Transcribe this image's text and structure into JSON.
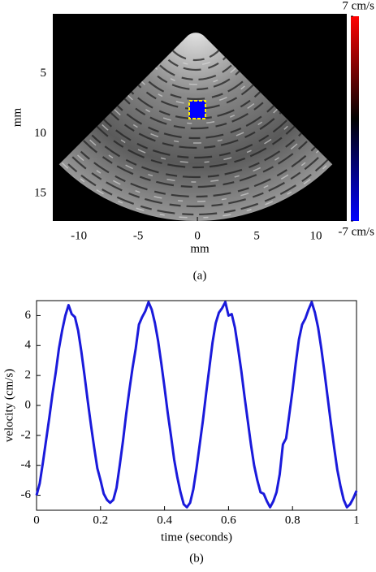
{
  "chart_data": [
    {
      "type": "image",
      "xlabel": "mm",
      "ylabel": "mm",
      "caption": "(a)",
      "xlim": [
        -12.2,
        12.6
      ],
      "xticks": [
        -10,
        -5,
        0,
        5,
        10
      ],
      "ylim": [
        17.3,
        0
      ],
      "yticks": [
        5,
        10,
        15
      ],
      "clim": [
        -7,
        7
      ],
      "cticks": [
        {
          "value": 7,
          "label": "7 cm/s"
        },
        {
          "value": -7,
          "label": "-7 cm/s"
        }
      ],
      "colormap": [
        "#0000ff",
        "#000000",
        "#ff0000"
      ]
    },
    {
      "type": "line",
      "xlabel": "time (seconds)",
      "ylabel": "velocity (cm/s)",
      "caption": "(b)",
      "xlim": [
        0,
        1
      ],
      "xticks": [
        0,
        0.2,
        0.4,
        0.6,
        0.8,
        1
      ],
      "ylim": [
        -7,
        7
      ],
      "yticks": [
        -6,
        -4,
        -2,
        0,
        2,
        4,
        6
      ],
      "color": "#1a1adb",
      "x": [
        0,
        0.01,
        0.02,
        0.03,
        0.04,
        0.05,
        0.06,
        0.07,
        0.08,
        0.09,
        0.1,
        0.11,
        0.12,
        0.13,
        0.14,
        0.15,
        0.16,
        0.17,
        0.18,
        0.19,
        0.2,
        0.21,
        0.22,
        0.23,
        0.24,
        0.25,
        0.26,
        0.27,
        0.28,
        0.29,
        0.3,
        0.31,
        0.32,
        0.33,
        0.34,
        0.35,
        0.36,
        0.37,
        0.38,
        0.39,
        0.4,
        0.41,
        0.42,
        0.43,
        0.44,
        0.45,
        0.46,
        0.47,
        0.48,
        0.49,
        0.5,
        0.51,
        0.52,
        0.53,
        0.54,
        0.55,
        0.56,
        0.57,
        0.58,
        0.59,
        0.6,
        0.61,
        0.62,
        0.63,
        0.64,
        0.65,
        0.66,
        0.67,
        0.68,
        0.69,
        0.7,
        0.71,
        0.72,
        0.73,
        0.74,
        0.75,
        0.76,
        0.77,
        0.78,
        0.79,
        0.8,
        0.81,
        0.82,
        0.83,
        0.84,
        0.85,
        0.86,
        0.87,
        0.88,
        0.89,
        0.9,
        0.91,
        0.92,
        0.93,
        0.94,
        0.95,
        0.96,
        0.97,
        0.98,
        0.99,
        1
      ],
      "values": [
        -6.0,
        -5.2,
        -3.8,
        -2.3,
        -0.8,
        0.8,
        2.2,
        3.8,
        5.0,
        6.0,
        6.7,
        6.1,
        5.9,
        5.0,
        3.6,
        2.0,
        0.3,
        -1.3,
        -2.8,
        -4.2,
        -5.0,
        -5.9,
        -6.3,
        -6.5,
        -6.3,
        -5.5,
        -4.0,
        -2.4,
        -0.6,
        1.0,
        2.5,
        3.8,
        5.4,
        5.9,
        6.3,
        6.9,
        6.4,
        5.5,
        4.3,
        2.8,
        1.2,
        -0.5,
        -2.0,
        -3.6,
        -4.8,
        -5.8,
        -6.6,
        -6.8,
        -6.5,
        -5.6,
        -4.2,
        -2.6,
        -1.0,
        0.8,
        2.5,
        4.2,
        5.5,
        6.2,
        6.5,
        6.9,
        6.0,
        6.1,
        5.2,
        3.8,
        2.3,
        0.6,
        -1.0,
        -2.6,
        -4.0,
        -5.0,
        -5.8,
        -5.9,
        -6.4,
        -6.8,
        -6.4,
        -5.8,
        -4.6,
        -2.6,
        -2.2,
        -0.6,
        1.0,
        2.8,
        4.4,
        5.4,
        5.8,
        6.4,
        6.9,
        6.2,
        5.2,
        3.8,
        2.2,
        0.5,
        -1.2,
        -2.8,
        -4.3,
        -5.4,
        -6.3,
        -6.8,
        -6.6,
        -6.2,
        -5.7
      ]
    }
  ]
}
